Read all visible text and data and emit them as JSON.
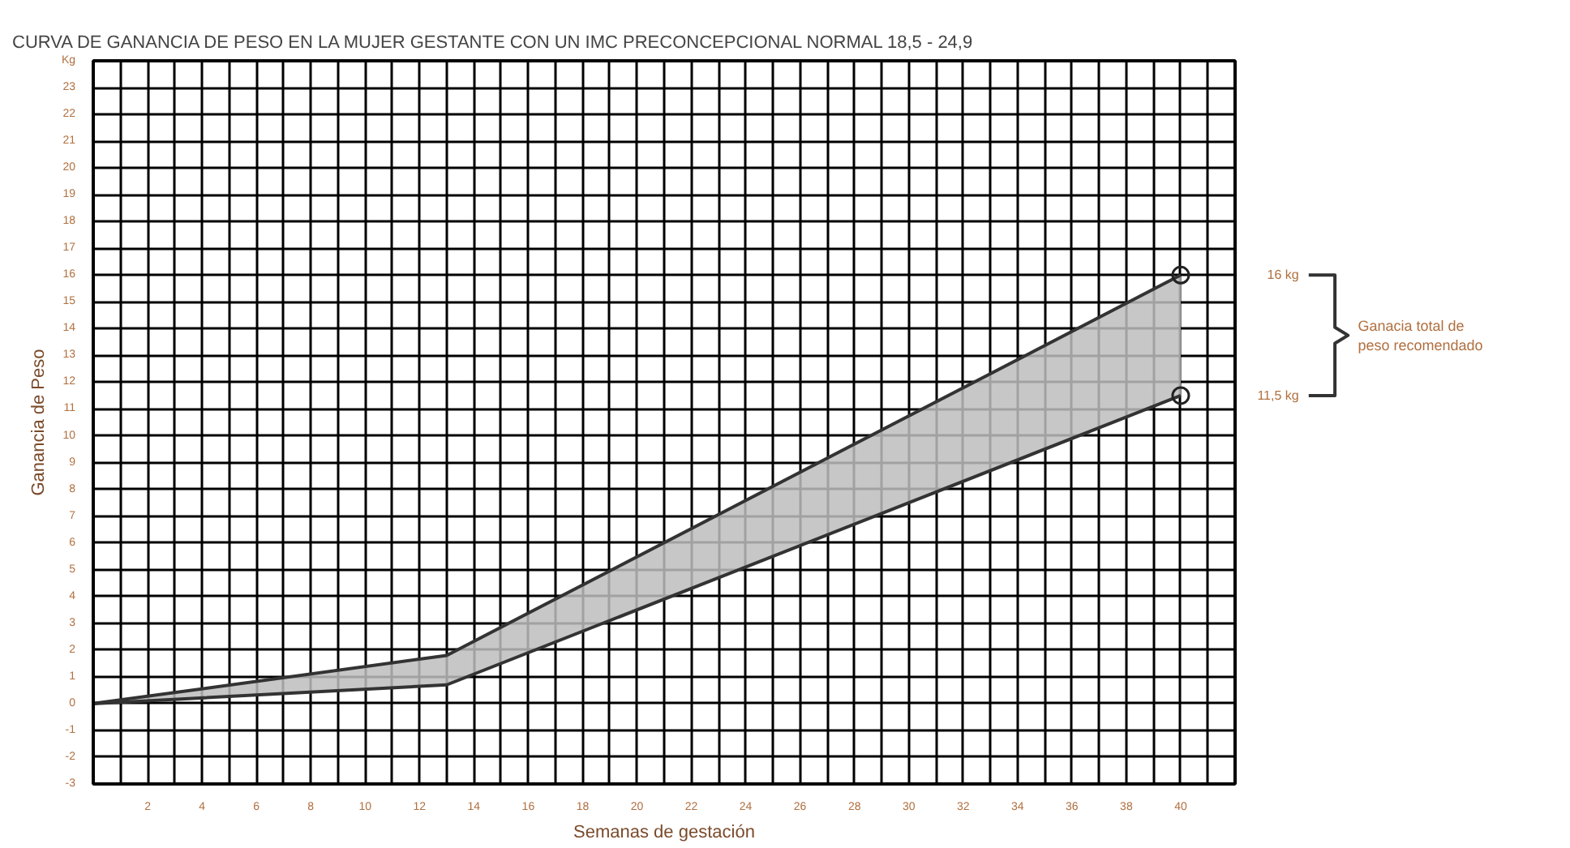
{
  "chart_data": {
    "type": "line",
    "title": "CURVA DE GANANCIA DE PESO EN LA MUJER GESTANTE CON UN  IMC  PRECONCEPCIONAL NORMAL  18,5 - 24,9",
    "xlabel": "Semanas de gestación",
    "ylabel": "Ganancia de Peso",
    "x": [
      0,
      13,
      40
    ],
    "series": [
      {
        "color": "#333333",
        "values": [
          0,
          1.8,
          16
        ],
        "lower": [
          0,
          0.7,
          11.5
        ],
        "upper": [
          0,
          1.8,
          16
        ]
      },
      {
        "color": "#333333",
        "values": [
          0,
          0.7,
          11.5
        ]
      }
    ],
    "annotations": [
      "16 kg",
      "11,5 kg",
      "Ganacia total de\npeso recomendado"
    ],
    "xlim": [
      0,
      42
    ],
    "ylim": [
      -3,
      24
    ],
    "xticks": [
      {
        "value": 1,
        "label": null
      },
      2,
      {
        "value": 3,
        "label": null
      },
      4,
      {
        "value": 5,
        "label": null
      },
      6,
      {
        "value": 7,
        "label": null
      },
      8,
      {
        "value": 9,
        "label": null
      },
      10,
      {
        "value": 11,
        "label": null
      },
      12,
      {
        "value": 13,
        "label": null
      },
      14,
      {
        "value": 15,
        "label": null
      },
      16,
      {
        "value": 17,
        "label": null
      },
      18,
      {
        "value": 19,
        "label": null
      },
      20,
      {
        "value": 21,
        "label": null
      },
      22,
      {
        "value": 23,
        "label": null
      },
      24,
      {
        "value": 25,
        "label": null
      },
      26,
      {
        "value": 27,
        "label": null
      },
      28,
      {
        "value": 29,
        "label": null
      },
      30,
      {
        "value": 31,
        "label": null
      },
      32,
      {
        "value": 33,
        "label": null
      },
      34,
      {
        "value": 35,
        "label": null
      },
      36,
      {
        "value": 37,
        "label": null
      },
      38,
      {
        "value": 39,
        "label": null
      },
      40,
      {
        "value": 41,
        "label": null
      }
    ],
    "yticks": [
      -3,
      -2,
      -1,
      0,
      1,
      2,
      3,
      4,
      5,
      6,
      7,
      8,
      9,
      10,
      11,
      12,
      13,
      14,
      15,
      16,
      17,
      18,
      19,
      20,
      21,
      22,
      23,
      {
        "value": 24,
        "label": "Kg"
      }
    ],
    "grid": true
  }
}
